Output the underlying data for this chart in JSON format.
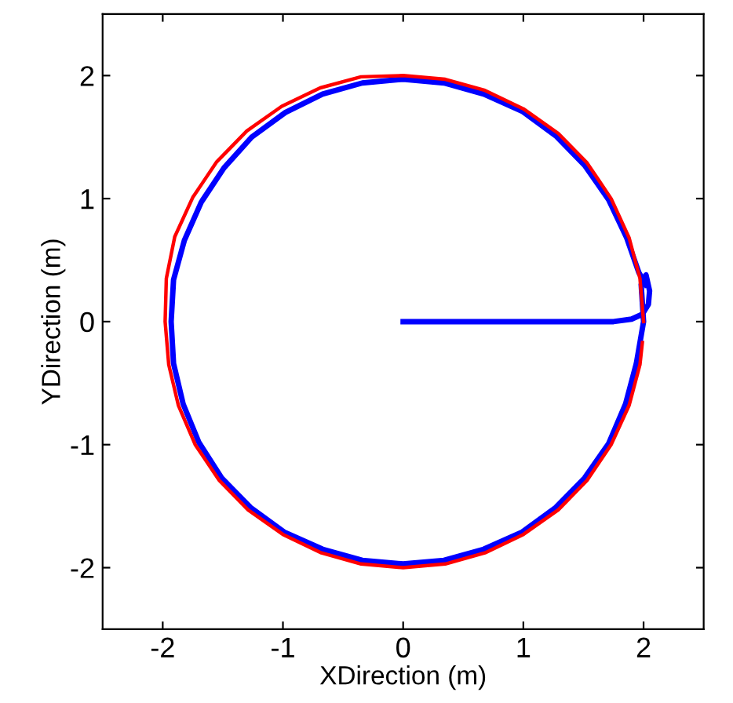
{
  "chart_data": {
    "type": "line",
    "xlabel": "XDirection (m)",
    "ylabel": "YDirection (m)",
    "xlim": [
      -2.5,
      2.5
    ],
    "ylim": [
      -2.5,
      2.5
    ],
    "xticks": [
      -2,
      -1,
      0,
      1,
      2
    ],
    "yticks": [
      -2,
      -1,
      0,
      1,
      2
    ],
    "grid": false,
    "marker": "none",
    "line_style": "solid",
    "series": [
      {
        "color": "#ff0000",
        "x": [
          2.0,
          1.97,
          1.88,
          1.73,
          1.53,
          1.29,
          1.0,
          0.68,
          0.35,
          0.0,
          -0.35,
          -0.69,
          -1.01,
          -1.3,
          -1.55,
          -1.75,
          -1.9,
          -1.97,
          -1.98,
          -1.95,
          -1.87,
          -1.73,
          -1.53,
          -1.29,
          -1.0,
          -0.68,
          -0.35,
          0.0,
          0.35,
          0.68,
          1.0,
          1.29,
          1.53,
          1.73,
          1.88,
          1.97,
          1.99
        ],
        "values": [
          0.0,
          0.35,
          0.68,
          1.0,
          1.29,
          1.53,
          1.73,
          1.88,
          1.97,
          2.0,
          1.99,
          1.9,
          1.75,
          1.55,
          1.3,
          1.01,
          0.69,
          0.35,
          0.0,
          -0.35,
          -0.68,
          -1.0,
          -1.29,
          -1.53,
          -1.73,
          -1.88,
          -1.97,
          -2.0,
          -1.97,
          -1.88,
          -1.73,
          -1.53,
          -1.29,
          -1.0,
          -0.68,
          -0.35,
          -0.17
        ]
      },
      {
        "color": "#0000ff",
        "x": [
          0.0,
          1.0,
          1.75,
          1.9,
          1.99,
          2.04,
          2.05,
          2.02,
          1.98,
          1.99,
          2.0,
          1.94,
          1.85,
          1.71,
          1.51,
          1.27,
          0.99,
          0.67,
          0.34,
          0.0,
          -0.34,
          -0.67,
          -0.99,
          -1.27,
          -1.51,
          -1.7,
          -1.83,
          -1.91,
          -1.93,
          -1.91,
          -1.82,
          -1.68,
          -1.49,
          -1.26,
          -0.98,
          -0.67,
          -0.34,
          0.0,
          0.34,
          0.67,
          0.99,
          1.27,
          1.51,
          1.71,
          1.86,
          1.96,
          2.02
        ],
        "values": [
          0.0,
          0.0,
          0.0,
          0.02,
          0.06,
          0.14,
          0.25,
          0.38,
          0.3,
          0.15,
          0.0,
          -0.34,
          -0.67,
          -0.99,
          -1.27,
          -1.51,
          -1.71,
          -1.85,
          -1.94,
          -1.97,
          -1.94,
          -1.85,
          -1.71,
          -1.51,
          -1.27,
          -0.98,
          -0.67,
          -0.34,
          0.0,
          0.34,
          0.66,
          0.97,
          1.25,
          1.5,
          1.7,
          1.85,
          1.94,
          1.97,
          1.94,
          1.85,
          1.71,
          1.51,
          1.27,
          0.99,
          0.68,
          0.4,
          0.3
        ]
      }
    ]
  }
}
